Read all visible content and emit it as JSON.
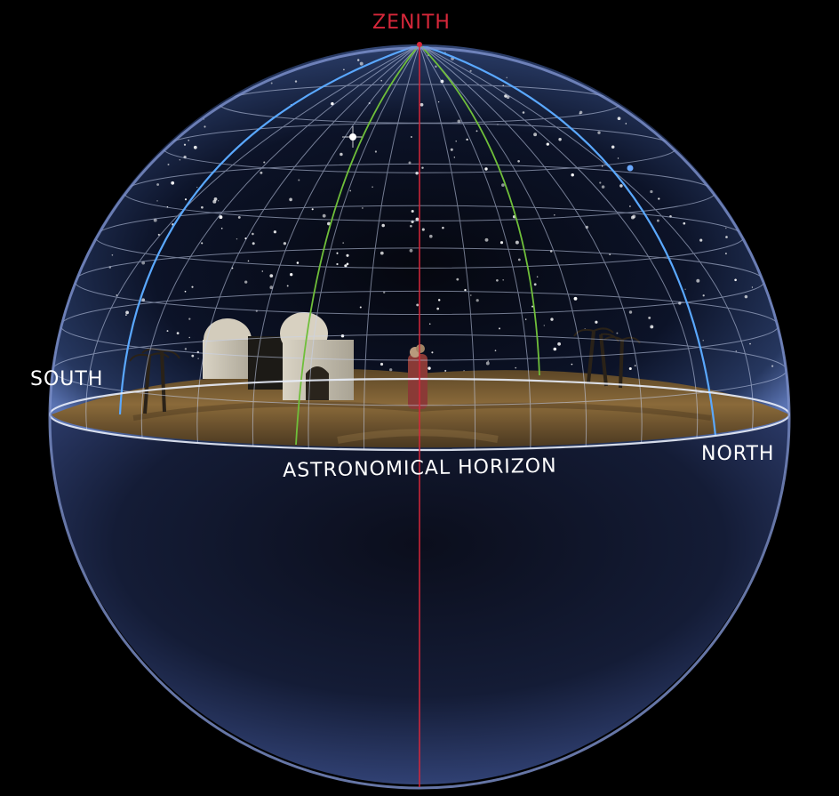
{
  "labels": {
    "zenith": "ZENITH",
    "south": "SOUTH",
    "north": "NORTH",
    "horizon": "ASTRONOMICAL HORIZON"
  },
  "colors": {
    "background": "#000000",
    "meridian_line": "#d6273a",
    "zenith_label": "#d6273a",
    "direction_labels": "#ffffff",
    "sky_dome": "#4f6aa8",
    "grid_lines": "#c9d4f0",
    "horizon_ring": "#e9eefb",
    "blue_arcs": "#5aa8ff",
    "green_arcs": "#6fbf3a",
    "ground": "#7a5e33",
    "lower_hemisphere": "#3d4f86"
  }
}
